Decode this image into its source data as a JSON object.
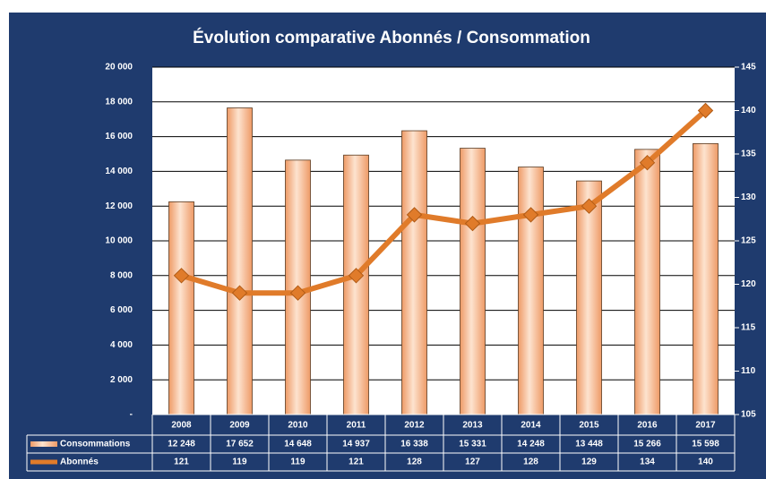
{
  "chart_data": {
    "type": "bar-line",
    "title": "Évolution comparative Abonnés / Consommation",
    "categories": [
      "2008",
      "2009",
      "2010",
      "2011",
      "2012",
      "2013",
      "2014",
      "2015",
      "2016",
      "2017"
    ],
    "series": [
      {
        "name": "Consommations",
        "color": "#ee9a66",
        "type": "bar",
        "values": [
          12248,
          17652,
          14648,
          14937,
          16338,
          15331,
          14248,
          13448,
          15266,
          15598
        ],
        "value_labels": [
          "12 248",
          "17 652",
          "14 648",
          "14 937",
          "16 338",
          "15 331",
          "14 248",
          "13 448",
          "15 266",
          "15 598"
        ]
      },
      {
        "name": "Abonnés",
        "color": "#e07b2a",
        "type": "line",
        "axis": "y2",
        "values": [
          121,
          119,
          119,
          121,
          128,
          127,
          128,
          129,
          134,
          140
        ]
      }
    ],
    "ylim": [
      0,
      20000
    ],
    "yticks": [
      {
        "value": 0,
        "label": "-"
      },
      {
        "value": 2000,
        "label": "2 000"
      },
      {
        "value": 4000,
        "label": "4 000"
      },
      {
        "value": 6000,
        "label": "6 000"
      },
      {
        "value": 8000,
        "label": "8 000"
      },
      {
        "value": 10000,
        "label": "10 000"
      },
      {
        "value": 12000,
        "label": "12 000"
      },
      {
        "value": 14000,
        "label": "14 000"
      },
      {
        "value": 16000,
        "label": "16 000"
      },
      {
        "value": 18000,
        "label": "18 000"
      },
      {
        "value": 20000,
        "label": "20 000"
      }
    ],
    "y2lim": [
      105,
      145
    ],
    "y2ticks": [
      105,
      110,
      115,
      120,
      125,
      130,
      135,
      140,
      145
    ],
    "grid": true
  }
}
